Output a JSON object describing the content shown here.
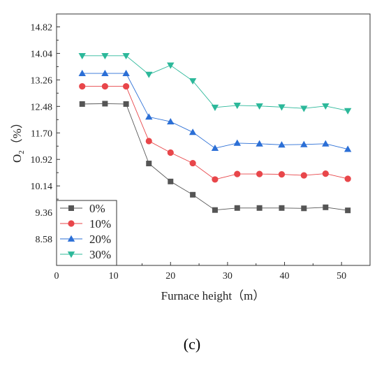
{
  "chart_data": {
    "type": "line",
    "panel_label": "(c)",
    "xlabel": "Furnace height（m）",
    "ylabel": "O₂（%）",
    "xlim": [
      0,
      55
    ],
    "ylim": [
      7.8,
      15.2
    ],
    "x_ticks": [
      0,
      10,
      20,
      30,
      40,
      50
    ],
    "y_ticks": [
      8.58,
      9.36,
      10.14,
      10.92,
      11.7,
      12.48,
      13.26,
      14.04,
      14.82
    ],
    "y_tick_labels": [
      "8.58",
      "9.36",
      "10.14",
      "10.92",
      "11.70",
      "12.48",
      "13.26",
      "14.04",
      "14.82"
    ],
    "x": [
      4.5,
      8.5,
      12.2,
      16.2,
      20.0,
      23.9,
      27.8,
      31.7,
      35.6,
      39.5,
      43.4,
      47.2,
      51.1
    ],
    "legend_position": "bottom-left",
    "grid": false,
    "series": [
      {
        "name": "0%",
        "color": "#555555",
        "marker": "square",
        "values": [
          12.55,
          12.56,
          12.55,
          10.8,
          10.27,
          9.88,
          9.43,
          9.49,
          9.49,
          9.49,
          9.48,
          9.51,
          9.42
        ]
      },
      {
        "name": "10%",
        "color": "#e8464a",
        "marker": "circle",
        "values": [
          13.07,
          13.07,
          13.07,
          11.46,
          11.12,
          10.81,
          10.33,
          10.49,
          10.49,
          10.48,
          10.45,
          10.5,
          10.35
        ]
      },
      {
        "name": "20%",
        "color": "#2b6fd6",
        "marker": "triangle-up",
        "values": [
          13.45,
          13.45,
          13.45,
          12.17,
          12.03,
          11.72,
          11.25,
          11.4,
          11.38,
          11.35,
          11.36,
          11.38,
          11.22
        ]
      },
      {
        "name": "30%",
        "color": "#2cb89a",
        "marker": "triangle-down",
        "values": [
          13.97,
          13.97,
          13.97,
          13.42,
          13.69,
          13.23,
          12.45,
          12.51,
          12.49,
          12.46,
          12.42,
          12.49,
          12.35
        ]
      }
    ]
  }
}
